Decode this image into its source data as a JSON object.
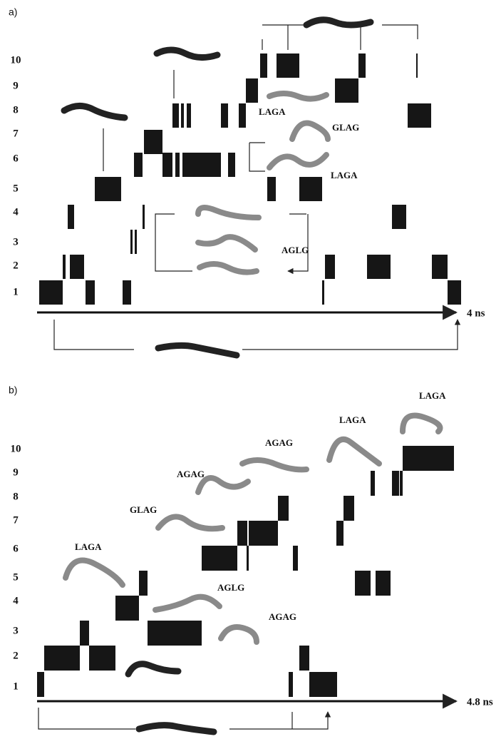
{
  "panels": [
    {
      "label": "a)",
      "levels": [
        "10",
        "9",
        "8",
        "7",
        "6",
        "5",
        "4",
        "3",
        "2",
        "1"
      ],
      "axis_label": "4 ns",
      "annotations": [
        "LAGA",
        "GLAG",
        "LAGA",
        "AGLG"
      ]
    },
    {
      "label": "b)",
      "levels": [
        "10",
        "9",
        "8",
        "7",
        "6",
        "5",
        "4",
        "3",
        "2",
        "1"
      ],
      "axis_label": "4.8 ns",
      "annotations": [
        "LAGA",
        "LAGA",
        "AGAG",
        "AGAG",
        "GLAG",
        "LAGA",
        "AGLG",
        "AGAG"
      ]
    }
  ]
}
